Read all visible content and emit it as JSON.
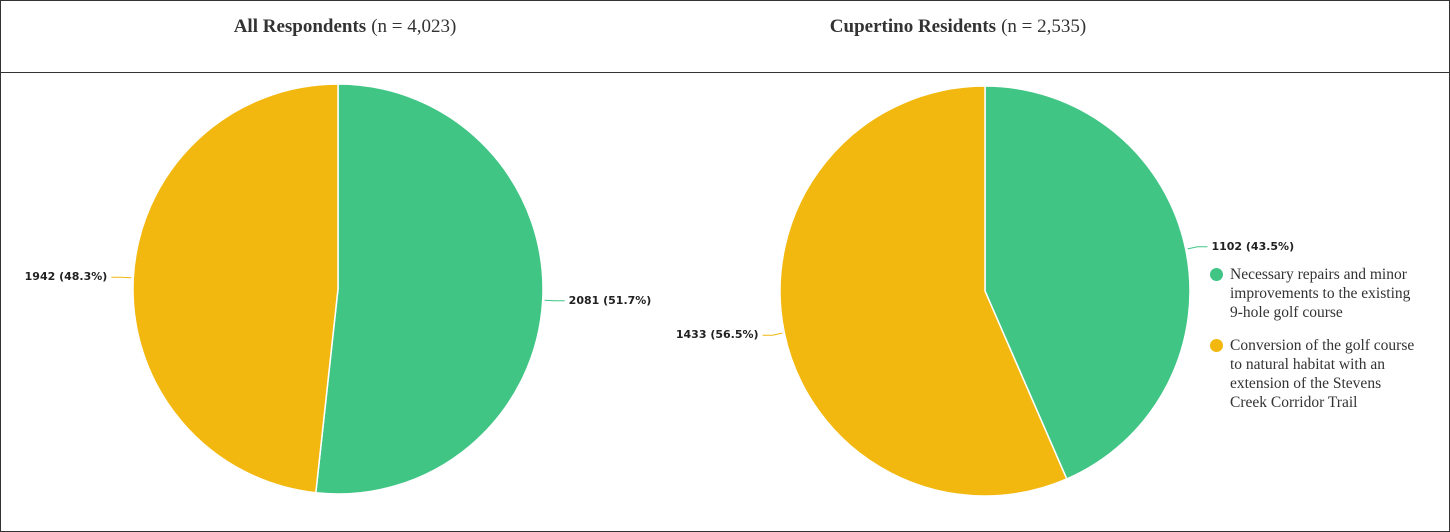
{
  "chart_data": [
    {
      "type": "pie",
      "title": "All Respondents",
      "subtitle": "(n = 4,023)",
      "values": [
        2081,
        1942
      ],
      "value_labels": [
        "2081 (51.7%)",
        "1942 (48.3%)"
      ],
      "colors": [
        "#40c585",
        "#f2b80f"
      ],
      "legend": false
    },
    {
      "type": "pie",
      "title": "Cupertino Residents",
      "subtitle": "(n = 2,535)",
      "categories": [
        "Necessary repairs and minor improvements to the existing 9-hole golf course",
        "Conversion of the golf course to natural habitat with an extension of the Stevens Creek Corridor Trail"
      ],
      "values": [
        1102,
        1433
      ],
      "value_labels": [
        "1102 (43.5%)",
        "1433 (56.5%)"
      ],
      "colors": [
        "#40c585",
        "#f2b80f"
      ],
      "legend": "right"
    }
  ]
}
